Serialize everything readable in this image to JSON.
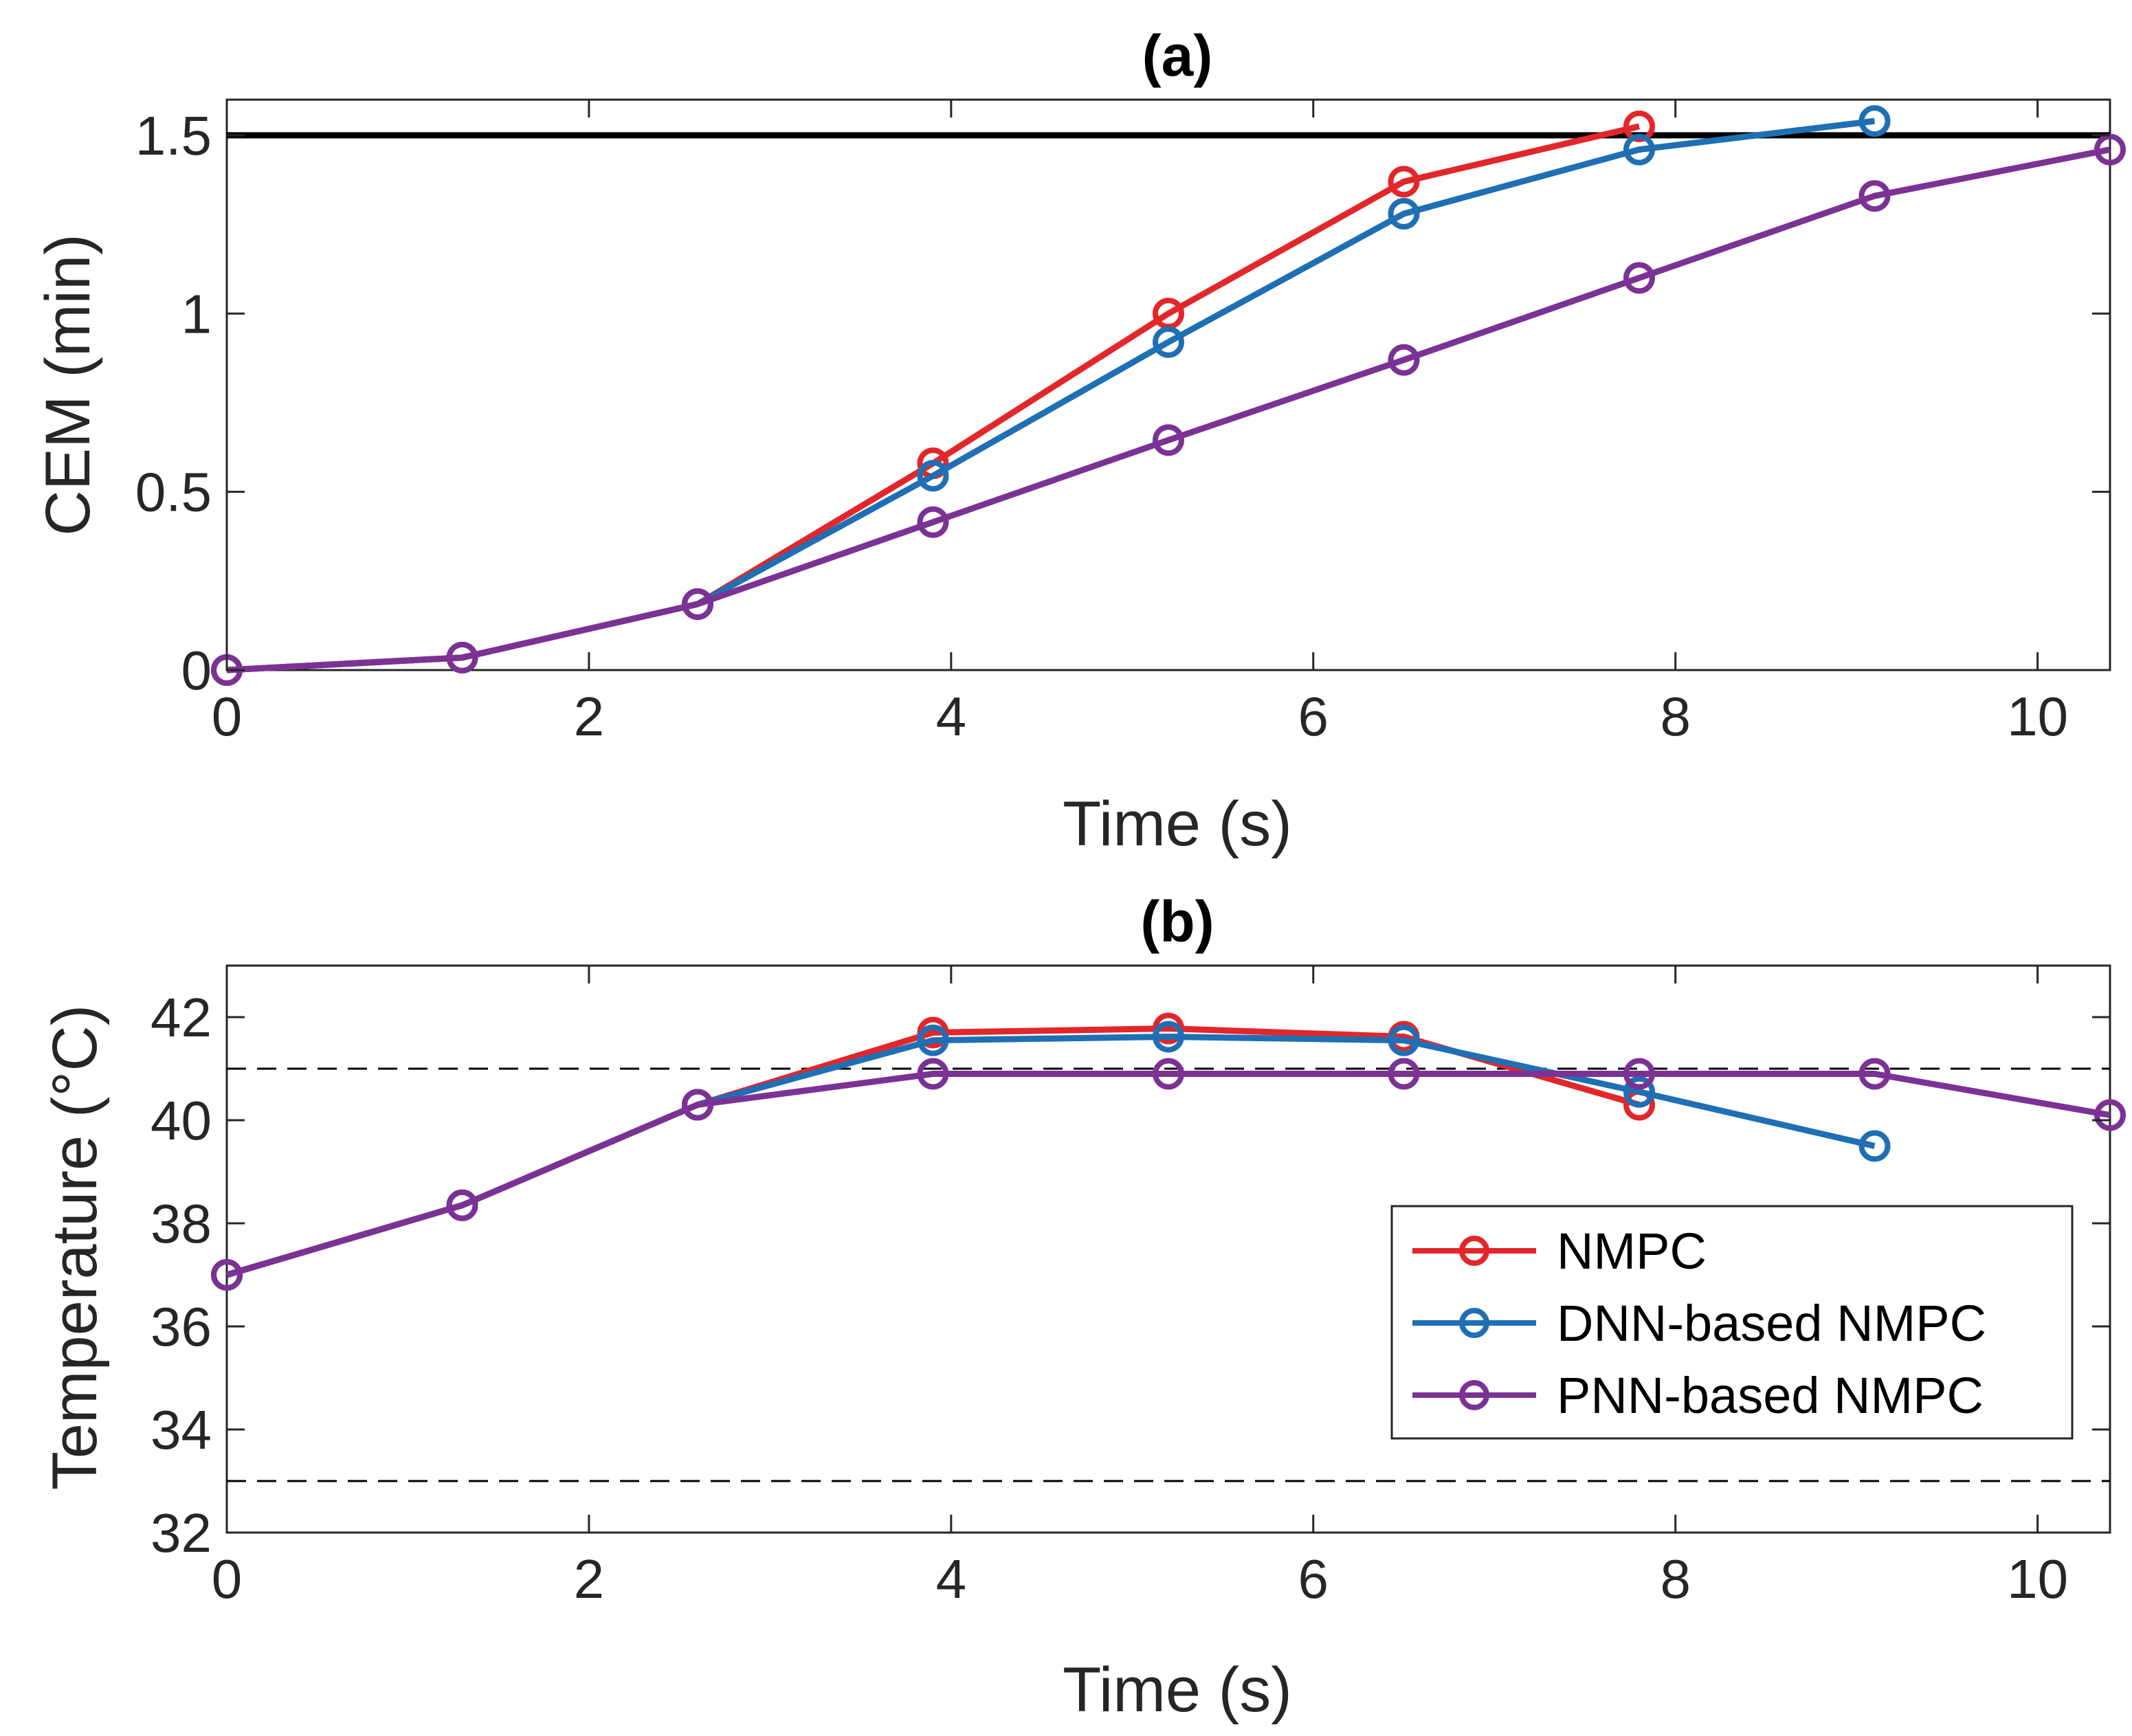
{
  "chart_data": [
    {
      "type": "line",
      "title": "(a)",
      "xlabel": "Time (s)",
      "ylabel": "CEM (min)",
      "xlim": [
        0,
        10.4
      ],
      "ylim": [
        0,
        1.6
      ],
      "xticks": [
        "0",
        "2",
        "4",
        "6",
        "8",
        "10"
      ],
      "xtick_values": [
        0,
        2,
        4,
        6,
        8,
        10
      ],
      "yticks": [
        "0",
        "0.5",
        "1",
        "1.5"
      ],
      "ytick_values": [
        0,
        0.5,
        1,
        1.5
      ],
      "grid": false,
      "reference_lines": [
        {
          "y": 1.5,
          "style": "solid",
          "color": "#000000"
        }
      ],
      "series": [
        {
          "name": "NMPC",
          "color": "#e3262a",
          "x": [
            0,
            1.3,
            2.6,
            3.9,
            5.2,
            6.5,
            7.8
          ],
          "y": [
            0,
            0.035,
            0.185,
            0.58,
            1.0,
            1.37,
            1.525
          ]
        },
        {
          "name": "DNN-based NMPC",
          "color": "#1f6fb4",
          "x": [
            0,
            1.3,
            2.6,
            3.9,
            5.2,
            6.5,
            7.8,
            9.1
          ],
          "y": [
            0,
            0.035,
            0.185,
            0.545,
            0.92,
            1.28,
            1.46,
            1.54
          ]
        },
        {
          "name": "PNN-based NMPC",
          "color": "#7b3294",
          "x": [
            0,
            1.3,
            2.6,
            3.9,
            5.2,
            6.5,
            7.8,
            9.1,
            10.4
          ],
          "y": [
            0,
            0.035,
            0.185,
            0.415,
            0.645,
            0.87,
            1.1,
            1.33,
            1.46
          ]
        }
      ]
    },
    {
      "type": "line",
      "title": "(b)",
      "xlabel": "Time (s)",
      "ylabel": "Temperature (°C)",
      "xlim": [
        0,
        10.4
      ],
      "ylim": [
        32,
        43
      ],
      "xticks": [
        "0",
        "2",
        "4",
        "6",
        "8",
        "10"
      ],
      "xtick_values": [
        0,
        2,
        4,
        6,
        8,
        10
      ],
      "yticks": [
        "32",
        "34",
        "36",
        "38",
        "40",
        "42"
      ],
      "ytick_values": [
        32,
        34,
        36,
        38,
        40,
        42
      ],
      "grid": false,
      "reference_lines": [
        {
          "y": 41,
          "style": "dashed",
          "color": "#000000"
        },
        {
          "y": 33,
          "style": "dashed",
          "color": "#000000"
        }
      ],
      "legend": {
        "placement": "bottom-right",
        "entries": [
          "NMPC",
          "DNN-based NMPC",
          "PNN-based NMPC"
        ]
      },
      "series": [
        {
          "name": "NMPC",
          "color": "#e3262a",
          "x": [
            0,
            1.3,
            2.6,
            3.9,
            5.2,
            6.5,
            7.8
          ],
          "y": [
            37.0,
            38.35,
            40.3,
            41.7,
            41.78,
            41.62,
            40.3
          ]
        },
        {
          "name": "DNN-based NMPC",
          "color": "#1f6fb4",
          "x": [
            0,
            1.3,
            2.6,
            3.9,
            5.2,
            6.5,
            7.8,
            9.1
          ],
          "y": [
            37.0,
            38.35,
            40.3,
            41.55,
            41.62,
            41.55,
            40.55,
            39.5
          ]
        },
        {
          "name": "PNN-based NMPC",
          "color": "#7b3294",
          "x": [
            0,
            1.3,
            2.6,
            3.9,
            5.2,
            6.5,
            7.8,
            9.1,
            10.4
          ],
          "y": [
            37.0,
            38.35,
            40.3,
            40.9,
            40.9,
            40.9,
            40.9,
            40.9,
            40.1
          ]
        }
      ]
    }
  ]
}
